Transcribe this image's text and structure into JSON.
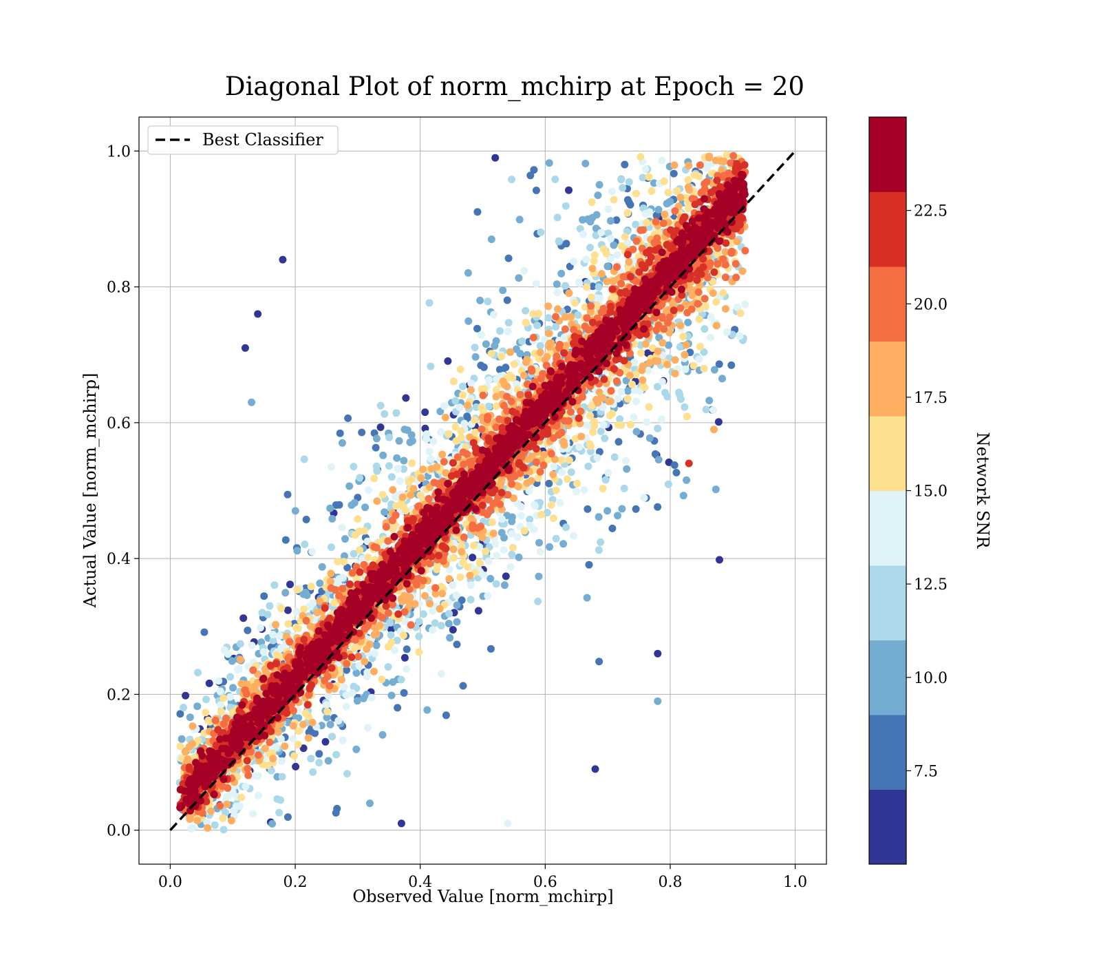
{
  "chart_data": {
    "type": "scatter",
    "title": "Diagonal Plot of norm_mchirp at Epoch = 20",
    "xlabel": "Observed Value [norm_mchirp]",
    "ylabel": "Actual Value [norm_mchirp]",
    "xlim": [
      -0.05,
      1.05
    ],
    "ylim": [
      -0.05,
      1.05
    ],
    "xticks": [
      0.0,
      0.2,
      0.4,
      0.6,
      0.8,
      1.0
    ],
    "yticks": [
      0.0,
      0.2,
      0.4,
      0.6,
      0.8,
      1.0
    ],
    "xtick_labels": [
      "0.0",
      "0.2",
      "0.4",
      "0.6",
      "0.8",
      "1.0"
    ],
    "ytick_labels": [
      "0.0",
      "0.2",
      "0.4",
      "0.6",
      "0.8",
      "1.0"
    ],
    "grid": true,
    "legend": {
      "placement": "top-left",
      "entries": [
        "Best Classifier"
      ]
    },
    "reference_line": {
      "label": "Best Classifier",
      "style": "dashed",
      "color": "#000000",
      "x": [
        0.0,
        1.0
      ],
      "y": [
        0.0,
        1.0
      ]
    },
    "colorbar": {
      "label": "Network SNR",
      "range": [
        5.0,
        25.0
      ],
      "ticks": [
        7.5,
        10.0,
        12.5,
        15.0,
        17.5,
        20.0,
        22.5
      ],
      "tick_labels": [
        "7.5",
        "10.0",
        "12.5",
        "15.0",
        "17.5",
        "20.0",
        "22.5"
      ],
      "bins": 10,
      "colors": [
        "#313695",
        "#4575b4",
        "#74add1",
        "#abd9e9",
        "#e0f3f8",
        "#fee090",
        "#fdae61",
        "#f46d43",
        "#d73027",
        "#a50026"
      ]
    },
    "point_density": {
      "description_of_distribution": "dense cloud along y = x; low-SNR points scattered widely, high-SNR points tight to diagonal",
      "approx_count": 9000,
      "observed_range": [
        0.02,
        0.9
      ],
      "actual_range": [
        0.0,
        1.0
      ]
    },
    "sample_outliers": [
      {
        "x": 0.52,
        "y": 0.99,
        "snr": 6
      },
      {
        "x": 0.37,
        "y": 0.01,
        "snr": 6
      },
      {
        "x": 0.18,
        "y": 0.84,
        "snr": 6
      },
      {
        "x": 0.14,
        "y": 0.76,
        "snr": 6
      },
      {
        "x": 0.12,
        "y": 0.71,
        "snr": 6
      },
      {
        "x": 0.13,
        "y": 0.63,
        "snr": 9
      },
      {
        "x": 0.78,
        "y": 0.26,
        "snr": 6
      },
      {
        "x": 0.68,
        "y": 0.09,
        "snr": 6
      },
      {
        "x": 0.78,
        "y": 0.19,
        "snr": 10
      },
      {
        "x": 0.54,
        "y": 0.01,
        "snr": 14
      },
      {
        "x": 0.83,
        "y": 0.54,
        "snr": 22
      },
      {
        "x": 0.87,
        "y": 0.59,
        "snr": 17
      }
    ]
  }
}
